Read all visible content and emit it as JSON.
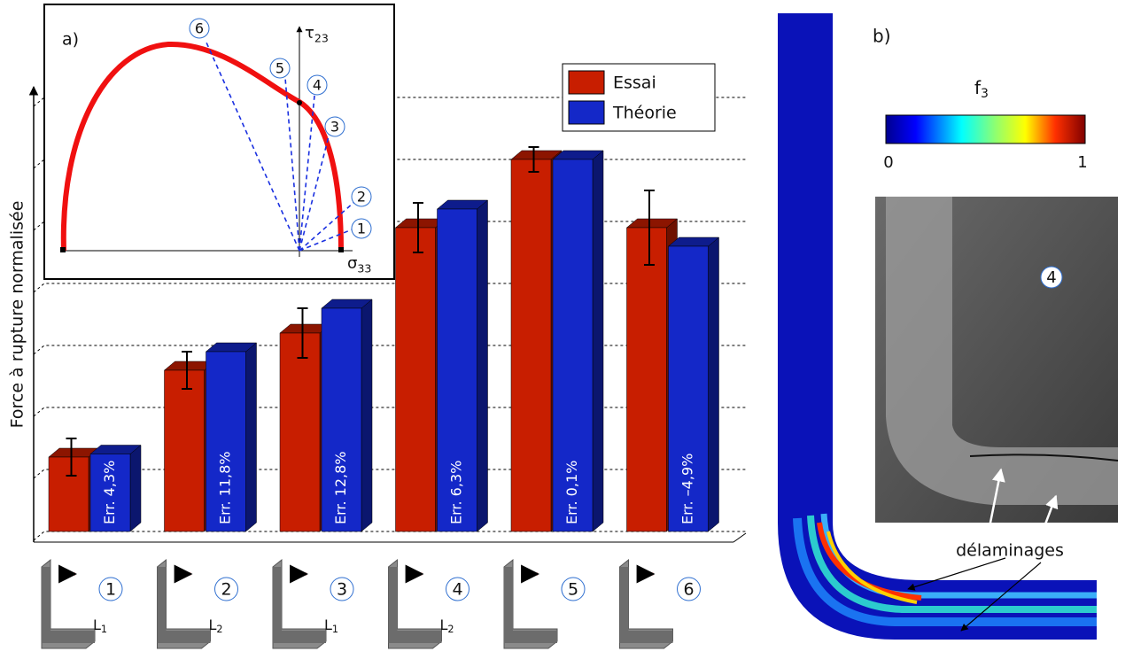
{
  "chart_data": {
    "type": "bar",
    "ylabel": "Force à rupture normalisée",
    "categories": [
      "1",
      "2",
      "3",
      "4",
      "5",
      "6"
    ],
    "series": [
      {
        "name": "Essai",
        "color": "#c81e00",
        "values": [
          1.2,
          2.6,
          3.2,
          4.9,
          6.0,
          4.9
        ],
        "errors": [
          0.3,
          0.3,
          0.4,
          0.4,
          0.2,
          0.6
        ]
      },
      {
        "name": "Théorie",
        "color": "#1428c8",
        "values": [
          1.25,
          2.9,
          3.6,
          5.2,
          6.0,
          4.6
        ]
      }
    ],
    "error_labels": [
      "Err. 4,3%",
      "Err. 11,8%",
      "Err. 12,8%",
      "Err. 6,3%",
      "Err. 0,1%",
      "Err. –4,9%"
    ],
    "ylim": [
      0,
      7
    ],
    "yticks": [
      0,
      1,
      2,
      3,
      4,
      5,
      6,
      7
    ],
    "grid": true,
    "legend": "upper right",
    "icon_labels": [
      [
        "L",
        "1"
      ],
      [
        "L",
        "2"
      ],
      [
        "L",
        "1"
      ],
      [
        "L",
        "2"
      ]
    ]
  },
  "inset": {
    "label": "a)",
    "y_axis": [
      "τ",
      "23"
    ],
    "x_axis": [
      "σ",
      "33"
    ],
    "points": [
      "1",
      "2",
      "3",
      "4",
      "5",
      "6"
    ]
  },
  "panel_b": {
    "label": "b)",
    "colorbar_title": [
      "f",
      "3"
    ],
    "colorbar_min": "0",
    "colorbar_max": "1",
    "photo_label": "4",
    "annotation": "délaminages"
  }
}
